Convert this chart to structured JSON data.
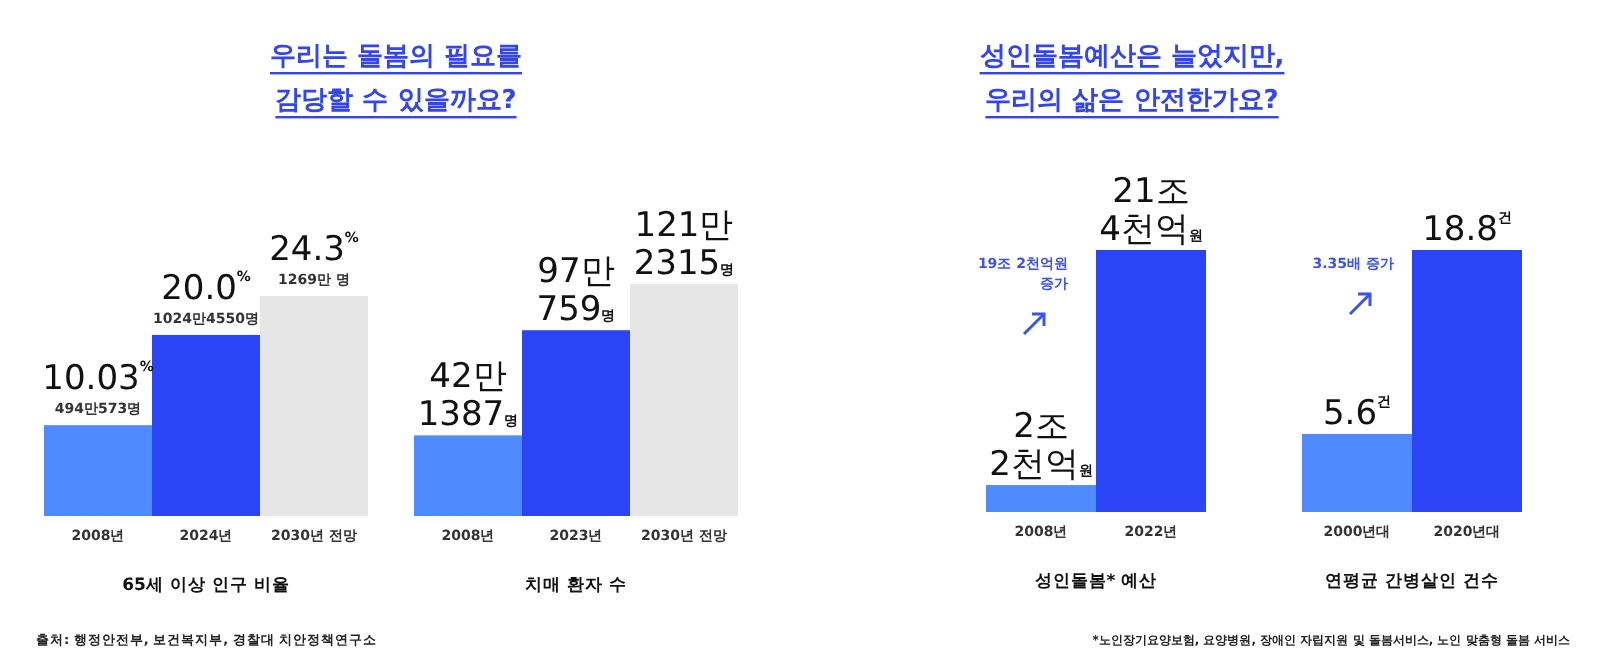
{
  "chart_data": [
    {
      "type": "bar",
      "title": "우리는 돌봄의 필요를\n감당할 수 있을까요?",
      "xlabel": "65세 이상 인구 비율",
      "categories": [
        "2008년",
        "2024년",
        "2030년 전망"
      ],
      "values": [
        10.03,
        20.0,
        24.3
      ],
      "colors": [
        "#4f8bff",
        "#2b45f6",
        "#e6e6e6"
      ],
      "value_labels": [
        "10.03$^{%}$",
        "20.0$^{%}$",
        "24.3$^{%}$"
      ],
      "annotations": [
        {
          "text": "494만573명",
          "x": "2008년",
          "y": 10.03
        },
        {
          "text": "1024만4550명",
          "x": "2024년",
          "y": 20.0
        },
        {
          "text": "1269만 명",
          "x": "2030년 전망",
          "y": 24.3
        },
        "출처: 행정안전부, 보건복지부, 경찰대 치안정책연구소"
      ]
    },
    {
      "type": "bar",
      "xlabel": "치매 환자 수",
      "categories": [
        "2008년",
        "2023년",
        "2030년 전망"
      ],
      "values": [
        42.1387,
        97.0759,
        121.2315
      ],
      "colors": [
        "#4f8bff",
        "#2b45f6",
        "#e6e6e6"
      ],
      "value_labels": [
        "42만\n1387명",
        "97만\n759명",
        "121만\n2315명"
      ]
    },
    {
      "type": "bar",
      "title": "성인돌봄예산은 늘었지만,\n우리의 삶은 안전한가요?",
      "xlabel": "성인돌봄* 예산",
      "categories": [
        "2008년",
        "2022년"
      ],
      "values": [
        2.2,
        21.4
      ],
      "colors": [
        "#4f8bff",
        "#2b45f6"
      ],
      "value_labels": [
        "2조\n2천억원",
        "21조\n4천억원"
      ],
      "annotations": [
        "19조 2천억원\n증가"
      ]
    },
    {
      "type": "bar",
      "xlabel": "연평균 간병살인 건수",
      "categories": [
        "2000년대",
        "2020년대"
      ],
      "values": [
        5.6,
        18.8
      ],
      "colors": [
        "#4f8bff",
        "#2b45f6"
      ],
      "value_labels": [
        "5.6$^{건}$",
        "18.8$^{건}$"
      ],
      "annotations": [
        "3.35배 증가",
        "*노인장기요양보험, 요양병원, 장애인 자립지원 및 돌봄서비스, 노인 맞춤형 돌봄 서비스"
      ]
    }
  ]
}
